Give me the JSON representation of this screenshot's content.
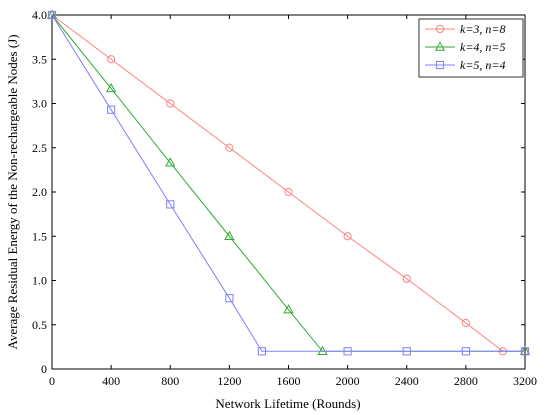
{
  "chart_data": {
    "type": "line",
    "title": "",
    "xlabel": "Network Lifetime (Rounds)",
    "ylabel": "Average Residual Energy of the Non-rechargeable Nodes (J)",
    "xlim": [
      0,
      3200
    ],
    "ylim": [
      0,
      4
    ],
    "xticks": [
      0,
      400,
      800,
      1200,
      1600,
      2000,
      2400,
      2800,
      3200
    ],
    "yticks": [
      0,
      0.5,
      1.0,
      1.5,
      2.0,
      2.5,
      3.0,
      3.5,
      4.0
    ],
    "xtick_labels": [
      "0",
      "400",
      "800",
      "1200",
      "1600",
      "2000",
      "2400",
      "2800",
      "3200"
    ],
    "ytick_labels": [
      "0",
      "0.5",
      "1.0",
      "1.5",
      "2.0",
      "2.5",
      "3.0",
      "3.5",
      "4.0"
    ],
    "grid": false,
    "legend_position": "top-right",
    "series": [
      {
        "name": "k=3, n=8",
        "color": "#ff8080",
        "marker": "circle",
        "points": [
          [
            0,
            4.0
          ],
          [
            400,
            3.5
          ],
          [
            800,
            3.0
          ],
          [
            1200,
            2.5
          ],
          [
            1600,
            2.0
          ],
          [
            2000,
            1.5
          ],
          [
            2400,
            1.02
          ],
          [
            2800,
            0.52
          ],
          [
            3050,
            0.2
          ],
          [
            3200,
            0.2
          ]
        ],
        "marker_points": [
          [
            0,
            4.0
          ],
          [
            400,
            3.5
          ],
          [
            800,
            3.0
          ],
          [
            1200,
            2.5
          ],
          [
            1600,
            2.0
          ],
          [
            2000,
            1.5
          ],
          [
            2400,
            1.02
          ],
          [
            2800,
            0.52
          ],
          [
            3050,
            0.2
          ],
          [
            3200,
            0.2
          ]
        ]
      },
      {
        "name": "k=4, n=5",
        "color": "#33aa33",
        "marker": "triangle",
        "points": [
          [
            0,
            4.0
          ],
          [
            400,
            3.17
          ],
          [
            800,
            2.33
          ],
          [
            1200,
            1.5
          ],
          [
            1600,
            0.67
          ],
          [
            1830,
            0.2
          ],
          [
            3200,
            0.2
          ]
        ],
        "marker_points": [
          [
            0,
            4.0
          ],
          [
            400,
            3.17
          ],
          [
            800,
            2.33
          ],
          [
            1200,
            1.5
          ],
          [
            1600,
            0.67
          ],
          [
            1830,
            0.2
          ],
          [
            3200,
            0.2
          ]
        ]
      },
      {
        "name": "k=5, n=4",
        "color": "#8080ff",
        "marker": "square",
        "points": [
          [
            0,
            4.0
          ],
          [
            400,
            2.93
          ],
          [
            800,
            1.86
          ],
          [
            1200,
            0.8
          ],
          [
            1420,
            0.2
          ],
          [
            3200,
            0.2
          ]
        ],
        "marker_points": [
          [
            0,
            4.0
          ],
          [
            400,
            2.93
          ],
          [
            800,
            1.86
          ],
          [
            1200,
            0.8
          ],
          [
            1420,
            0.2
          ],
          [
            2000,
            0.2
          ],
          [
            2400,
            0.2
          ],
          [
            2800,
            0.2
          ],
          [
            3200,
            0.2
          ]
        ]
      }
    ]
  }
}
